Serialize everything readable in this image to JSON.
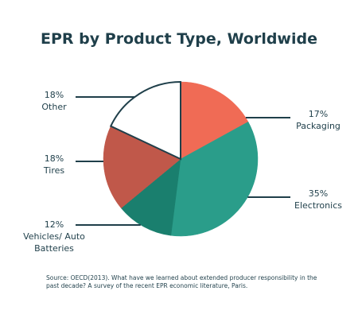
{
  "chart_data": {
    "type": "pie",
    "title": "EPR by Product Type, Worldwide",
    "categories": [
      "Packaging",
      "Electronics",
      "Vehicles/ Auto Batteries",
      "Tires",
      "Other"
    ],
    "values": [
      17,
      35,
      12,
      18,
      18
    ],
    "value_labels": [
      "17%",
      "35%",
      "12%",
      "18%",
      "18%"
    ],
    "colors": [
      "#f06b55",
      "#2a9d8a",
      "#1a7f6e",
      "#c0584a",
      "#ffffff"
    ],
    "source": "Source: OECD(2013). What have we learned about extended producer responsibility in the past decade? A survey of the recent EPR economic literature, Paris."
  }
}
